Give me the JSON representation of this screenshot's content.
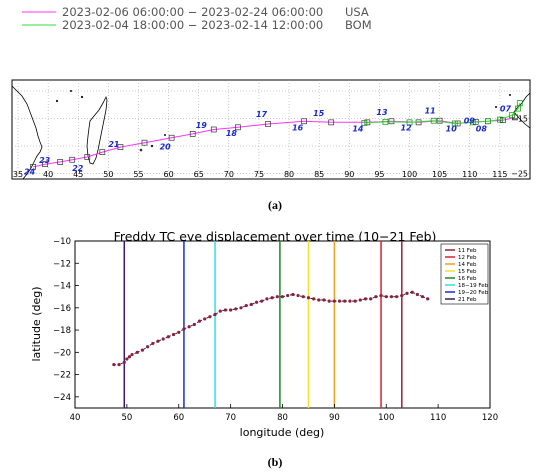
{
  "chart_data": [
    {
      "type": "line",
      "panel_label": "(a)",
      "legend": [
        {
          "name": "2023-02-06 06:00:00 − 2023-02-24 06:00:00",
          "agency": "USA",
          "color": "#ff33ff"
        },
        {
          "name": "2023-02-04 18:00:00 − 2023-02-14 12:00:00",
          "agency": "BOM",
          "color": "#33dd33"
        }
      ],
      "xlim": [
        34,
        120
      ],
      "ylim": [
        -26,
        -8
      ],
      "x_ticks": [
        35,
        40,
        45,
        50,
        55,
        60,
        65,
        70,
        75,
        80,
        85,
        90,
        95,
        100,
        105,
        110,
        115
      ],
      "y_ticks": [
        -15,
        -25
      ],
      "y_tick_labels": [
        "−15",
        "−25"
      ],
      "grid": true,
      "series": [
        {
          "name": "USA",
          "color": "#ff33ff",
          "points": [
            [
              37.5,
              -23.8
            ],
            [
              39.5,
              -23.3
            ],
            [
              42.0,
              -22.9
            ],
            [
              44.0,
              -22.5
            ],
            [
              46.5,
              -22.0
            ],
            [
              49.0,
              -21.1
            ],
            [
              52.0,
              -20.2
            ],
            [
              56.0,
              -19.4
            ],
            [
              60.5,
              -18.5
            ],
            [
              64.0,
              -17.8
            ],
            [
              67.5,
              -17.0
            ],
            [
              71.5,
              -16.6
            ],
            [
              76.5,
              -16.0
            ],
            [
              82.5,
              -15.5
            ],
            [
              87.0,
              -15.7
            ],
            [
              93.0,
              -15.7
            ],
            [
              97.0,
              -15.5
            ],
            [
              101.5,
              -15.7
            ],
            [
              105.0,
              -15.4
            ],
            [
              108.0,
              -15.9
            ],
            [
              111.0,
              -15.6
            ],
            [
              113.0,
              -15.5
            ],
            [
              115.5,
              -15.3
            ],
            [
              117.5,
              -14.8
            ]
          ]
        },
        {
          "name": "BOM",
          "color": "#33dd33",
          "points": [
            [
              92.5,
              -15.8
            ],
            [
              96.0,
              -15.6
            ],
            [
              100.0,
              -15.7
            ],
            [
              104.0,
              -15.4
            ],
            [
              107.5,
              -15.9
            ],
            [
              110.5,
              -15.7
            ],
            [
              113.0,
              -15.5
            ],
            [
              115.0,
              -15.2
            ],
            [
              117.0,
              -14.4
            ],
            [
              118.0,
              -13.2
            ],
            [
              118.3,
              -12.2
            ]
          ]
        }
      ],
      "day_labels": [
        {
          "text": "24",
          "x": 36.0,
          "y": -25.2
        },
        {
          "text": "23",
          "x": 38.5,
          "y": -23.1
        },
        {
          "text": "22",
          "x": 44.0,
          "y": -24.5
        },
        {
          "text": "21",
          "x": 50.0,
          "y": -20.2
        },
        {
          "text": "20",
          "x": 58.5,
          "y": -20.6
        },
        {
          "text": "19",
          "x": 64.5,
          "y": -16.7
        },
        {
          "text": "18",
          "x": 69.5,
          "y": -18.2
        },
        {
          "text": "17",
          "x": 74.5,
          "y": -14.7
        },
        {
          "text": "16",
          "x": 80.5,
          "y": -17.2
        },
        {
          "text": "15",
          "x": 84.0,
          "y": -14.5
        },
        {
          "text": "14",
          "x": 90.5,
          "y": -17.4
        },
        {
          "text": "13",
          "x": 94.5,
          "y": -14.4
        },
        {
          "text": "12",
          "x": 98.5,
          "y": -17.2
        },
        {
          "text": "11",
          "x": 102.5,
          "y": -14.1
        },
        {
          "text": "10",
          "x": 106.0,
          "y": -17.4
        },
        {
          "text": "09",
          "x": 109.0,
          "y": -15.9
        },
        {
          "text": "08",
          "x": 111.0,
          "y": -17.4
        },
        {
          "text": "07",
          "x": 115.0,
          "y": -13.7
        }
      ]
    },
    {
      "type": "line",
      "panel_label": "(b)",
      "title": "Freddy TC eye displacement over time (10−21 Feb)",
      "xlabel": "longitude (deg)",
      "ylabel": "latitude (deg)",
      "xlim": [
        40,
        120
      ],
      "ylim": [
        -25,
        -10
      ],
      "x_ticks": [
        40,
        50,
        60,
        70,
        80,
        90,
        100,
        110,
        120
      ],
      "y_ticks": [
        -10,
        -12,
        -14,
        -16,
        -18,
        -20,
        -22,
        -24
      ],
      "y_tick_labels": [
        "−10",
        "−12",
        "−14",
        "−16",
        "−18",
        "−20",
        "−22",
        "−24"
      ],
      "legend_position": "top-right",
      "vertical_lines": [
        {
          "name": "11 Feb",
          "x": 103,
          "color": "#a01f2d"
        },
        {
          "name": "12 Feb",
          "x": 99,
          "color": "#e01e2e"
        },
        {
          "name": "14 Feb",
          "x": 90,
          "color": "#f0a020"
        },
        {
          "name": "15 Feb",
          "x": 85,
          "color": "#f0e030"
        },
        {
          "name": "16 Feb",
          "x": 79.5,
          "color": "#1a8a2a"
        },
        {
          "name": "18−19 Feb",
          "x": 67,
          "color": "#30e0e0"
        },
        {
          "name": "19−20 Feb",
          "x": 61,
          "color": "#1c2cd0"
        },
        {
          "name": "21 Feb",
          "x": 49.5,
          "color": "#3a1a66"
        }
      ],
      "track": {
        "color": "#8a2040",
        "x": [
          47.5,
          48.5,
          49.5,
          50.0,
          50.5,
          51.0,
          52.0,
          53.0,
          54.0,
          55.0,
          56.0,
          57.0,
          58.0,
          59.0,
          60.0,
          61.0,
          62.0,
          63.0,
          64.0,
          65.0,
          66.0,
          67.0,
          68.0,
          69.0,
          70.0,
          71.0,
          72.0,
          73.0,
          74.0,
          75.0,
          76.0,
          77.0,
          78.0,
          79.0,
          80.0,
          81.0,
          82.0,
          83.0,
          84.0,
          85.0,
          86.0,
          87.0,
          88.0,
          89.0,
          90.0,
          91.0,
          92.0,
          93.0,
          94.0,
          95.0,
          96.0,
          97.0,
          98.0,
          99.0,
          100.0,
          101.0,
          102.0,
          103.0,
          104.0,
          105.0,
          106.0,
          107.0,
          108.0
        ],
        "y": [
          -21.1,
          -21.1,
          -20.9,
          -20.6,
          -20.4,
          -20.2,
          -20.0,
          -19.8,
          -19.5,
          -19.2,
          -19.0,
          -18.8,
          -18.6,
          -18.4,
          -18.2,
          -17.9,
          -17.7,
          -17.5,
          -17.2,
          -17.0,
          -16.8,
          -16.6,
          -16.3,
          -16.2,
          -16.2,
          -16.1,
          -16.0,
          -15.8,
          -15.7,
          -15.5,
          -15.4,
          -15.2,
          -15.1,
          -15.0,
          -15.0,
          -14.9,
          -14.8,
          -14.9,
          -15.0,
          -15.1,
          -15.2,
          -15.3,
          -15.3,
          -15.4,
          -15.4,
          -15.4,
          -15.4,
          -15.4,
          -15.4,
          -15.3,
          -15.2,
          -15.2,
          -15.0,
          -14.9,
          -15.0,
          -15.0,
          -15.0,
          -14.9,
          -14.7,
          -14.6,
          -14.8,
          -15.0,
          -15.2
        ]
      }
    }
  ]
}
